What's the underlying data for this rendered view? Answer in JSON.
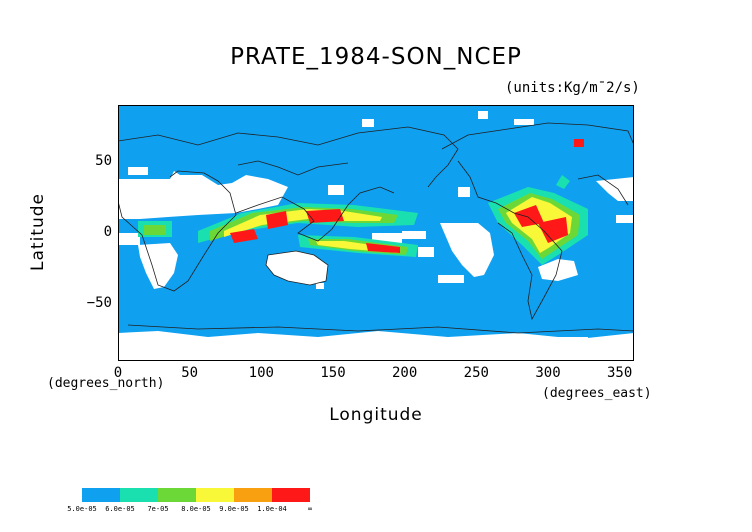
{
  "title": "PRATE_1984-SON_NCEP",
  "units": "(units:Kg/m¯2/s)",
  "xaxis": {
    "label": "Longitude",
    "unit_note": "(degrees_east)",
    "ticks": [
      "0",
      "50",
      "100",
      "150",
      "200",
      "250",
      "300",
      "350"
    ],
    "tick_values": [
      0,
      50,
      100,
      150,
      200,
      250,
      300,
      350
    ],
    "range": [
      0,
      360
    ]
  },
  "yaxis": {
    "label": "Latitude",
    "unit_note": "(degrees_north)",
    "ticks": [
      "50",
      "0",
      "−50"
    ],
    "tick_values": [
      50,
      0,
      -50
    ],
    "range": [
      -90,
      90
    ]
  },
  "colorbar": {
    "labels": [
      "5.0e-05",
      "6.0e-05",
      "7e-05",
      "8.0e-05",
      "9.0e-05",
      "1.0e-04",
      "∞"
    ],
    "colors": [
      "#0fa0f0",
      "#1ae0b0",
      "#6cd838",
      "#f8f838",
      "#f8a010",
      "#ff1818"
    ]
  },
  "map_colors": {
    "ocean_background": "#0fa0f0",
    "missing": "#ffffff",
    "coast": "#202020"
  }
}
